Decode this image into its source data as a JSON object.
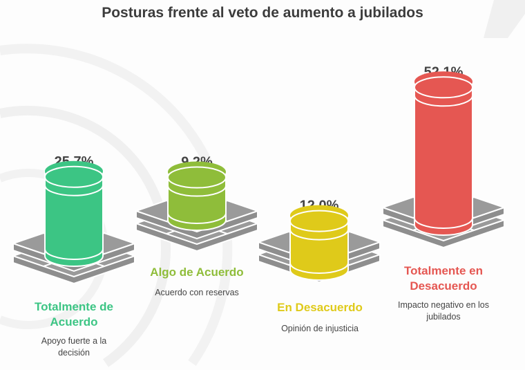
{
  "chart_data": {
    "type": "bar",
    "title": "Posturas frente al veto de aumento a jubilados",
    "categories": [
      "Totalmente de Acuerdo",
      "Algo de Acuerdo",
      "En Desacuerdo",
      "Totalmente en Desacuerdo"
    ],
    "values": [
      25.7,
      9.2,
      12.0,
      52.1
    ],
    "value_labels": [
      "25.7%",
      "9.2%",
      "12.0%",
      "52.1%"
    ],
    "descriptions": [
      "Apoyo fuerte a la decisión",
      "Acuerdo con reservas",
      "Opinión de injusticia",
      "Impacto negativo en los jubilados"
    ],
    "colors": [
      "#3cc584",
      "#8fbd3a",
      "#dfca1a",
      "#e55752"
    ],
    "unit": "%"
  }
}
